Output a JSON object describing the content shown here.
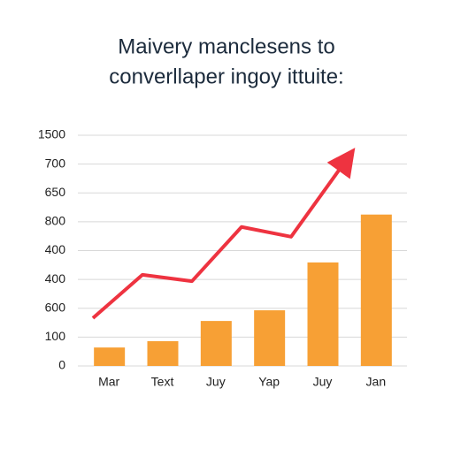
{
  "chart_data": {
    "type": "combo",
    "title": [
      "Maivery manclesens to",
      "converllaper ingoy ittuite:"
    ],
    "categories": [
      "Mar",
      "Text",
      "Juy",
      "Yap",
      "Juy",
      "Jan"
    ],
    "y_labels": [
      "0",
      "100",
      "600",
      "400",
      "400",
      "800",
      "650",
      "700",
      "1500"
    ],
    "ylim": [
      0,
      8
    ],
    "grid": true,
    "series": [
      {
        "type": "bar",
        "color": "#f7a035",
        "values": [
          0.64,
          0.86,
          1.56,
          1.93,
          3.59,
          5.25
        ]
      },
      {
        "type": "line",
        "color": "#ee3340",
        "values": [
          1.66,
          3.16,
          2.94,
          4.82,
          4.48,
          6.87
        ]
      }
    ]
  }
}
